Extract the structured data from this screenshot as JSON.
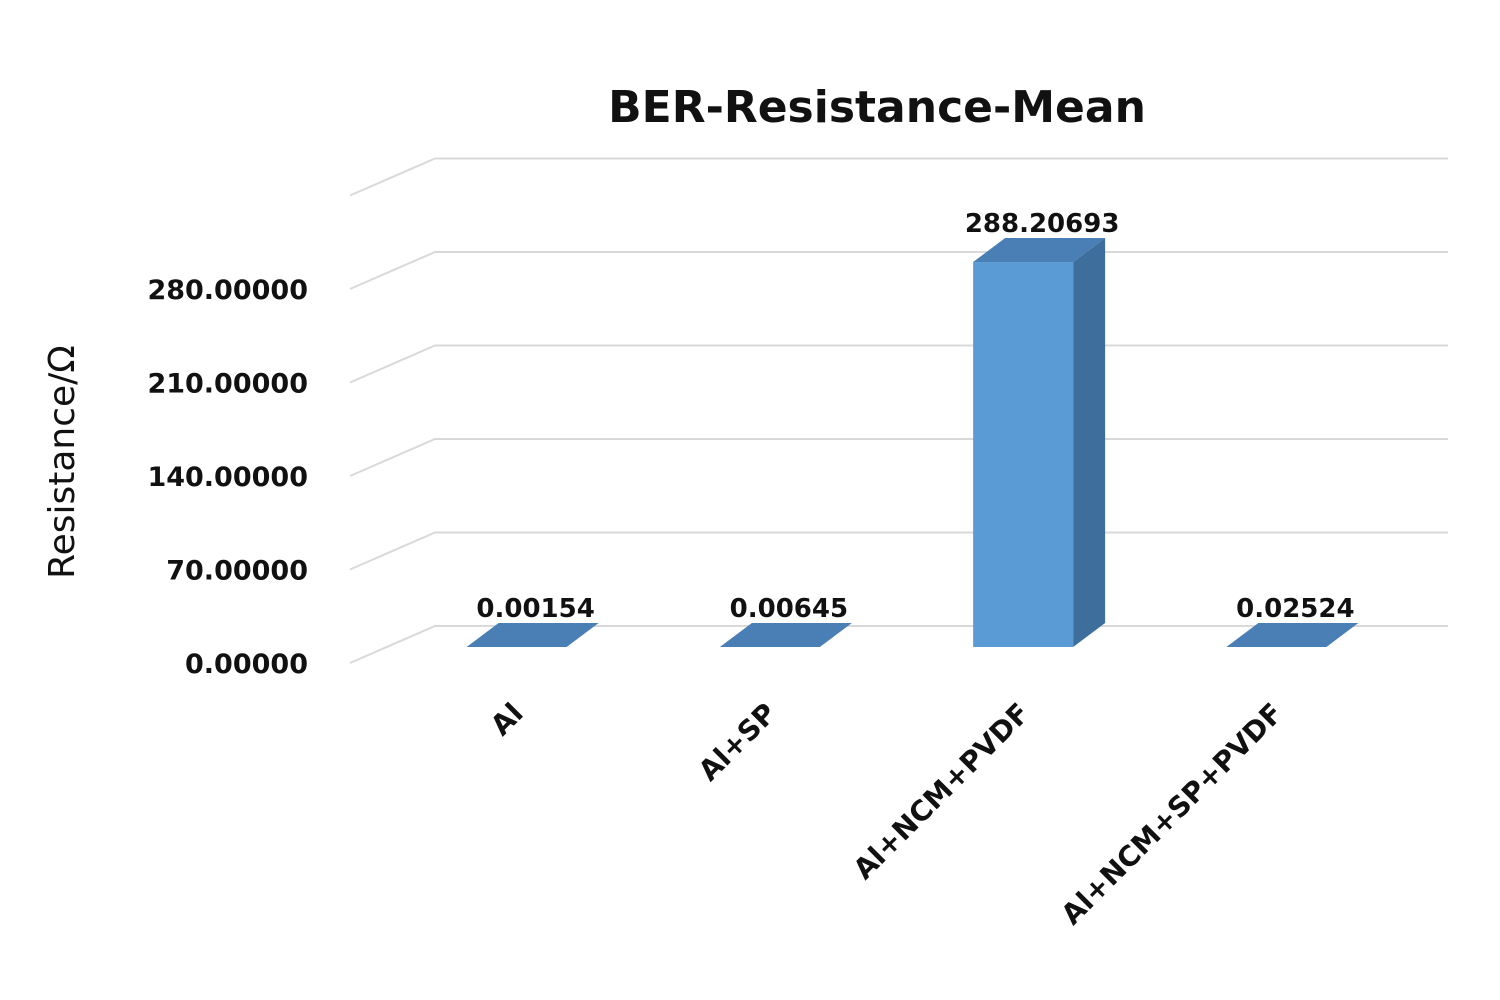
{
  "chart_data": {
    "type": "bar",
    "title": "BER-Resistance-Mean",
    "xlabel": "",
    "ylabel": "Resistance/Ω",
    "categories": [
      "Al",
      "Al+SP",
      "Al+NCM+PVDF",
      "Al+NCM+SP+PVDF"
    ],
    "values": [
      0.00154,
      0.00645,
      288.20693,
      0.02524
    ],
    "value_labels": [
      "0.00154",
      "0.00645",
      "288.20693",
      "0.02524"
    ],
    "yticks": [
      0,
      70,
      140,
      210,
      280
    ],
    "ytick_labels": [
      "0.00000",
      "70.00000",
      "140.00000",
      "210.00000",
      "280.00000"
    ],
    "ylim": [
      0,
      350
    ],
    "grid": true,
    "legend": "none",
    "style": "3d-column",
    "colors": {
      "bar_front": "#5b9bd5",
      "bar_side": "#3e6e9c",
      "bar_top": "#4a7fb5",
      "grid": "#d9d9d9",
      "text": "#111111"
    }
  }
}
